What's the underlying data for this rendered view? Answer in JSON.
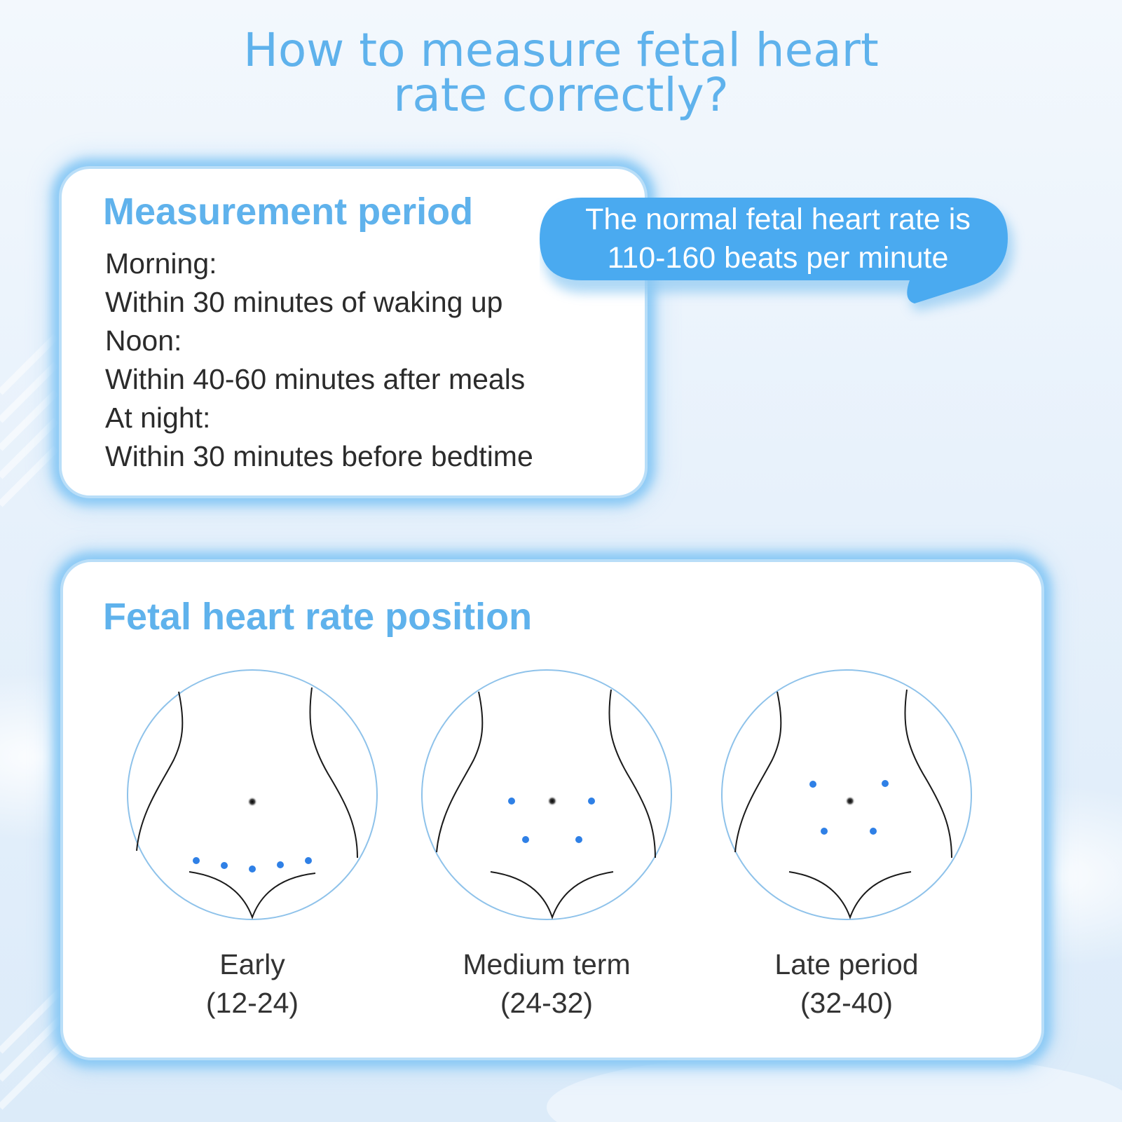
{
  "title": {
    "line1": "How to measure fetal heart",
    "line2": "rate correctly?"
  },
  "measurement_card": {
    "heading": "Measurement period",
    "lines": [
      "Morning:",
      "Within 30 minutes of waking up",
      "Noon:",
      "Within 40-60 minutes after meals",
      "At night:",
      "Within 30 minutes before bedtime"
    ]
  },
  "bubble": {
    "line1": "The normal fetal heart rate is",
    "line2": "110-160 beats per minute"
  },
  "position_card": {
    "heading": "Fetal heart rate position",
    "stages": [
      {
        "name": "Early",
        "weeks": "(12-24)"
      },
      {
        "name": "Medium term",
        "weeks": "(24-32)"
      },
      {
        "name": "Late period",
        "weeks": "(32-40)"
      }
    ]
  },
  "colors": {
    "accent": "#5fb2ec",
    "bubble": "#4aaaf0",
    "point": "#2f80e6",
    "body_text": "#2b2b2b"
  }
}
